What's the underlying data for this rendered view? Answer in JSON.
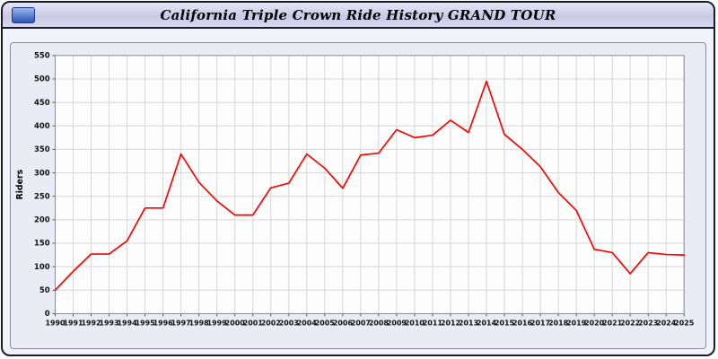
{
  "header": {
    "title": "California Triple Crown Ride History GRAND TOUR"
  },
  "colors": {
    "line": "#ff0000",
    "panel_background": "#ebebf6",
    "header_background": "#d2d2ea",
    "plot_background": "#fdfdfd",
    "grid": "#d6d6d6"
  },
  "chart_data": {
    "type": "line",
    "title": "California Triple Crown Ride History GRAND TOUR",
    "xlabel": "",
    "ylabel": "Riders",
    "ylim": [
      0,
      550
    ],
    "ytick_step": 50,
    "grid": true,
    "legend_position": "none",
    "x": [
      1990,
      1991,
      1992,
      1993,
      1994,
      1995,
      1996,
      1997,
      1998,
      1999,
      2000,
      2001,
      2002,
      2003,
      2004,
      2005,
      2006,
      2007,
      2008,
      2009,
      2010,
      2011,
      2012,
      2013,
      2014,
      2015,
      2016,
      2017,
      2018,
      2019,
      2020,
      2021,
      2022,
      2023,
      2024,
      2025
    ],
    "series": [
      {
        "name": "Riders",
        "color": "#ff0000",
        "values": [
          50,
          90,
          127,
          127,
          155,
          225,
          225,
          340,
          280,
          240,
          210,
          210,
          268,
          278,
          340,
          310,
          267,
          338,
          342,
          392,
          375,
          380,
          412,
          386,
          495,
          382,
          350,
          313,
          258,
          220,
          137,
          130,
          85,
          130,
          126,
          125
        ]
      }
    ]
  }
}
